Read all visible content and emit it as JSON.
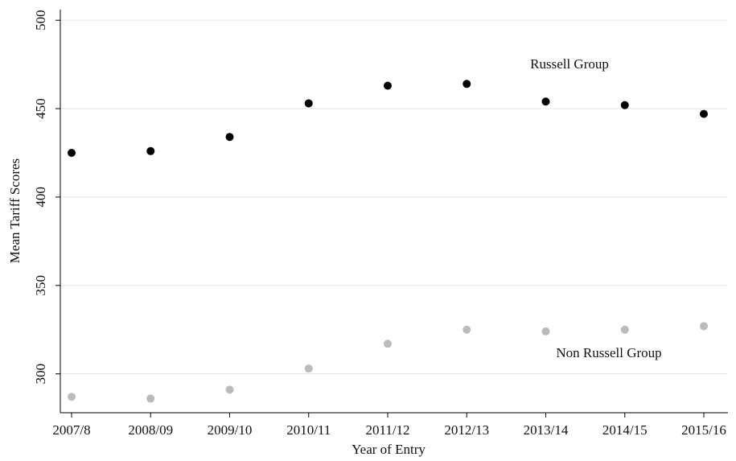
{
  "chart_data": {
    "type": "scatter",
    "x_label": "Year of Entry",
    "y_label": "Mean Tariff Scores",
    "categories": [
      "2007/8",
      "2008/09",
      "2009/10",
      "2010/11",
      "2011/12",
      "2012/13",
      "2013/14",
      "2014/15",
      "2015/16"
    ],
    "series": [
      {
        "name": "Russell Group",
        "color": "#000000",
        "values": [
          425,
          426,
          434,
          453,
          463,
          464,
          454,
          452,
          447
        ]
      },
      {
        "name": "Non Russell Group",
        "color": "#bbbbbb",
        "values": [
          287,
          286,
          291,
          303,
          317,
          325,
          324,
          325,
          327
        ]
      }
    ],
    "ylim": [
      278,
      506
    ],
    "yticks": [
      300,
      350,
      400,
      450,
      500
    ],
    "grid": true
  }
}
